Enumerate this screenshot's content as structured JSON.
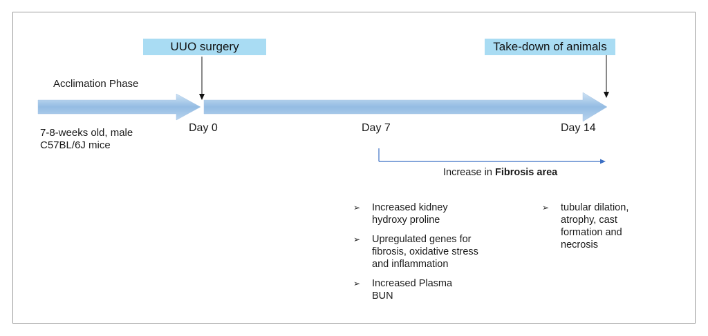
{
  "labels": {
    "uuo_surgery": "UUO surgery",
    "takedown": "Take-down of animals",
    "acclimation": "Acclimation Phase",
    "mice_line1": "7-8-weeks old, male",
    "mice_line2": "C57BL/6J mice",
    "day0": "Day 0",
    "day7": "Day 7",
    "day14": "Day 14",
    "increase_prefix": "Increase in ",
    "increase_bold": "Fibrosis area"
  },
  "bullet_marker": "➢",
  "day7_findings": [
    {
      "line1": "Increased kidney",
      "line2": "hydroxy proline"
    },
    {
      "line1": "Upregulated genes for",
      "line2": "fibrosis, oxidative stress",
      "line3": "and inflammation"
    },
    {
      "line1": "Increased Plasma",
      "line2": "BUN"
    }
  ],
  "day14_findings": [
    {
      "line1": "tubular dilation,",
      "line2": "atrophy, cast",
      "line3": "formation and",
      "line4": "necrosis"
    }
  ],
  "colors": {
    "tag_fill": "#a9dcf3",
    "arrow_dark": "#8ab4de",
    "arrow_light": "#c5dcf0",
    "fibrosis_line": "#3b6fc4"
  }
}
